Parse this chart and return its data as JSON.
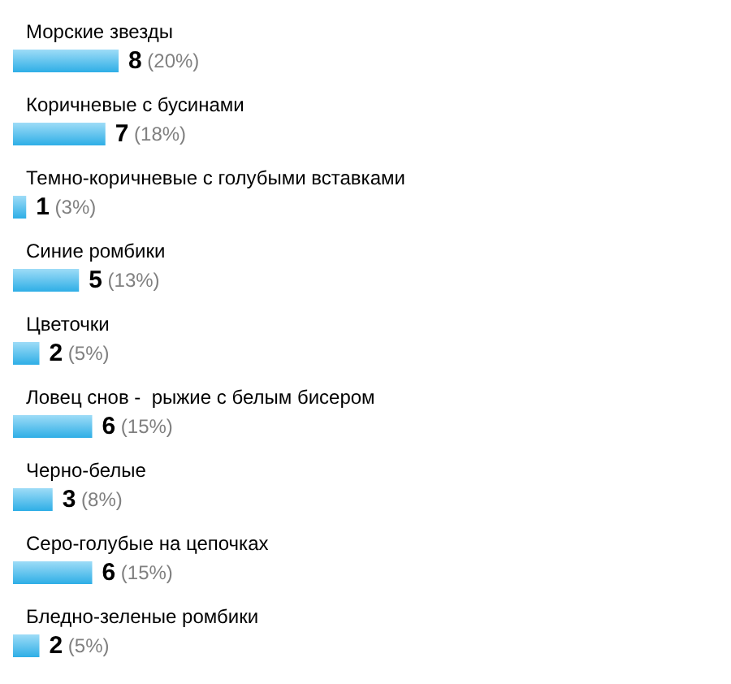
{
  "chart_data": {
    "type": "bar",
    "orientation": "horizontal",
    "categories": [
      "Морские звезды",
      "Коричневые с бусинами",
      "Темно-коричневые с голубыми вставками",
      "Синие ромбики",
      "Цветочки",
      "Ловец снов -  рыжие с белым бисером",
      "Черно-белые",
      "Серо-голубые на цепочках",
      "Бледно-зеленые ромбики"
    ],
    "values": [
      8,
      7,
      1,
      5,
      2,
      6,
      3,
      6,
      2
    ],
    "value_labels": [
      "8 (20%)",
      "7 (18%)",
      "1 (3%)",
      "5 (13%)",
      "2 (5%)",
      "6 (15%)",
      "3 (8%)",
      "6 (15%)",
      "2 (5%)"
    ],
    "color": "#2eaee6",
    "tick_labels": "y"
  }
}
